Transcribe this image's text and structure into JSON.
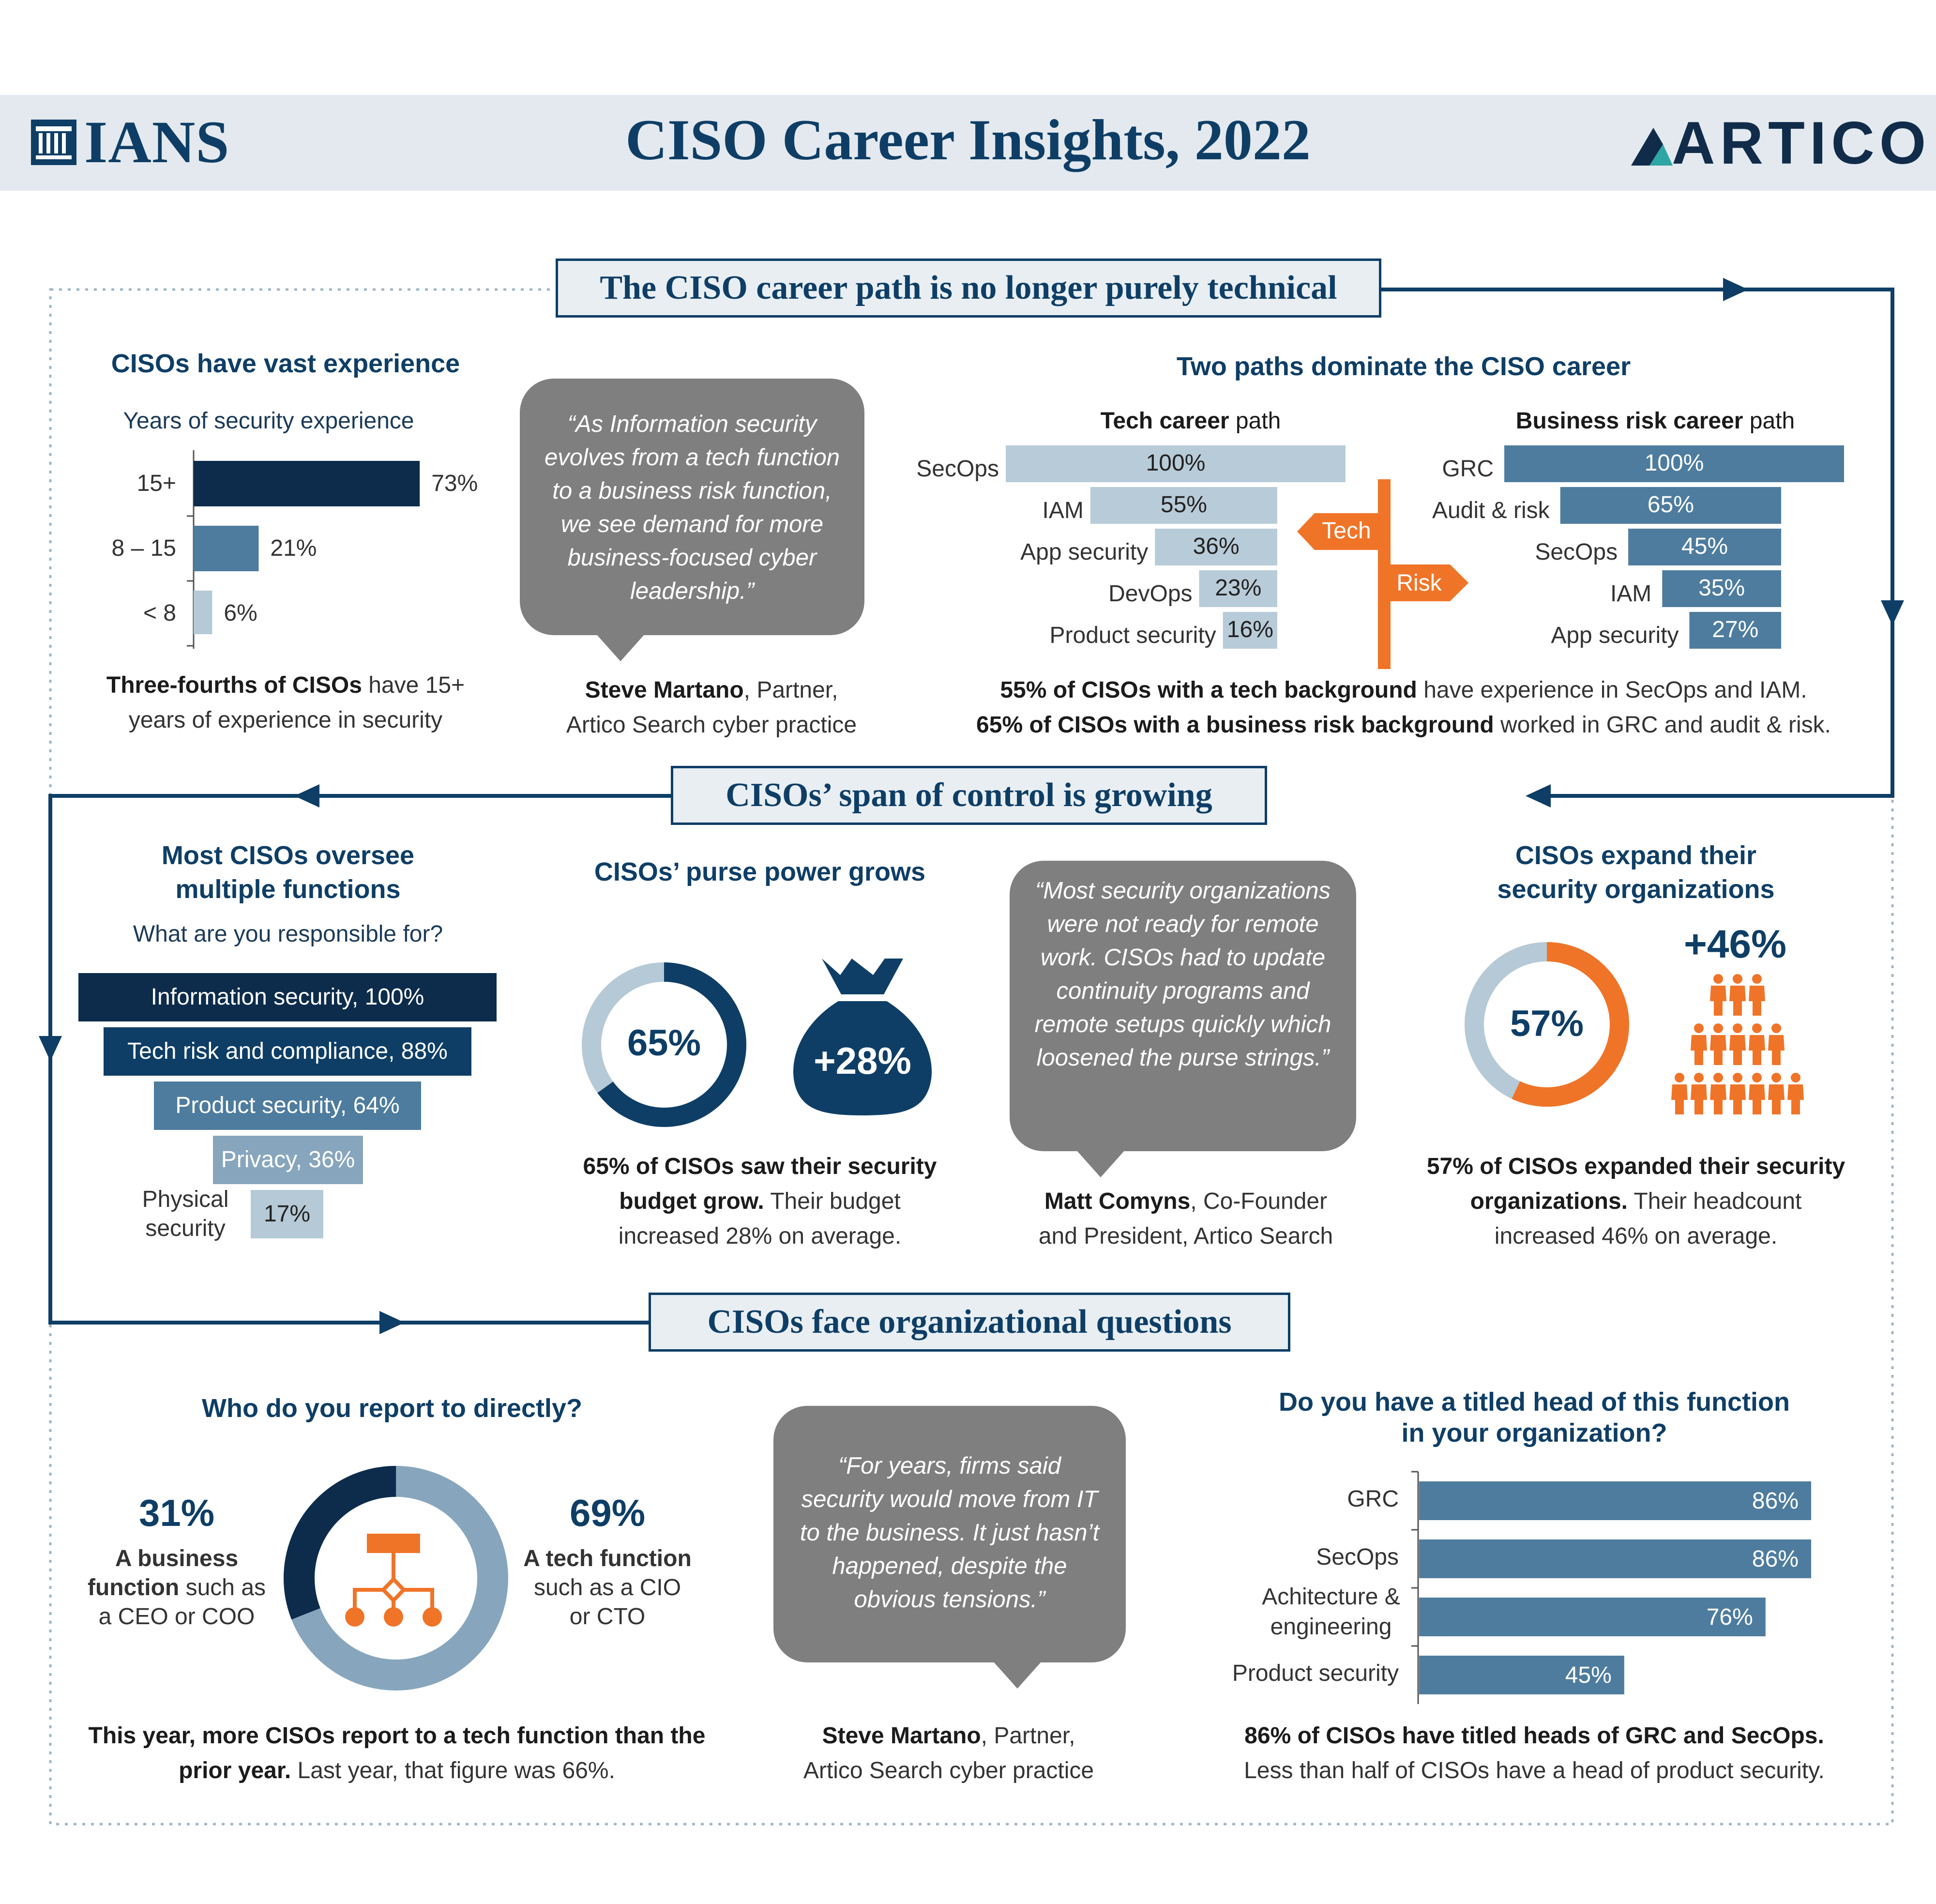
{
  "header": {
    "title": "CISO Career Insights, 2022",
    "left_logo": "IANS",
    "right_logo": "ARTICO",
    "left_logo_icon": "ians-columns-icon",
    "right_logo_icon": "artico-triangle-icon"
  },
  "colors": {
    "navy": "#0e3e66",
    "dark_navy": "#0d2c4c",
    "steel": "#4e7c9e",
    "light_steel": "#b5c9d6",
    "orange": "#f07428",
    "gray_bubble": "#7f7f7f"
  },
  "sections": {
    "s1": "The CISO career path is no longer purely technical",
    "s2": "CISOs’ span of control is growing",
    "s3": "CISOs face organizational questions"
  },
  "experience": {
    "title": "CISOs have vast experience",
    "subtitle": "Years of security experience",
    "caption_bold": "Three-fourths of CISOs",
    "caption_rest_1": " have 15+",
    "caption_rest_2": "years of experience in security"
  },
  "quote1": {
    "text": "“As Information security evolves from a tech function to a business risk function, we see demand for more business-focused cyber leadership.”",
    "author": "Steve Martano",
    "role_1": ", Partner,",
    "role_2": "Artico Search cyber practice"
  },
  "paths": {
    "title": "Two paths dominate the CISO career",
    "tech_title_bold": "Tech career",
    "tech_title_rest": " path",
    "risk_title_bold": "Business risk career",
    "risk_title_rest": " path",
    "sign_tech": "Tech",
    "sign_risk": "Risk",
    "caption1_bold": "55% of CISOs with a tech background",
    "caption1_rest": " have experience in SecOps and IAM.",
    "caption2_bold": "65% of CISOs with a business risk background",
    "caption2_rest": " worked in GRC and audit & risk."
  },
  "oversee": {
    "title_1": "Most CISOs oversee",
    "title_2": "multiple functions",
    "subtitle": "What are you responsible for?",
    "items": [
      {
        "label": "Information security, 100%",
        "value": 100
      },
      {
        "label": "Tech risk and compliance, 88%",
        "value": 88
      },
      {
        "label": "Product security, 64%",
        "value": 64
      },
      {
        "label": "Privacy, 36%",
        "value": 36
      }
    ],
    "last_label_1": "Physical",
    "last_label_2": "security",
    "last_value_text": "17%",
    "last_value": 17
  },
  "purse": {
    "title": "CISOs’ purse power grows",
    "donut_text": "65%",
    "donut_value": 65,
    "bag_text": "+28%",
    "bag_icon": "money-bag-icon",
    "cap_bold_1": "65% of CISOs saw their security",
    "cap_bold_2": "budget grow.",
    "cap_rest_2": " Their budget",
    "cap_3": "increased 28% on average."
  },
  "quote2": {
    "text": "“Most security organizations were not ready for remote work. CISOs had to update continuity programs and remote setups quickly which loosened the purse strings.”",
    "author": "Matt Comyns",
    "role_1": ", Co-Founder",
    "role_2": "and President, Artico Search"
  },
  "expand": {
    "title_1": "CISOs expand their",
    "title_2": "security organizations",
    "donut_text": "57%",
    "donut_value": 57,
    "plus_text": "+46%",
    "people_icon": "people-group-icon",
    "cap_bold_1": "57% of CISOs expanded their security",
    "cap_bold_2": "organizations.",
    "cap_rest_2": " Their headcount",
    "cap_3": "increased 46% on average."
  },
  "report": {
    "title": "Who do you report to directly?",
    "left_pct": "31%",
    "left_bold_1": "A business",
    "left_bold_2": "function",
    "left_rest_2": " such as",
    "left_3": "a CEO or COO",
    "right_pct": "69%",
    "right_bold_1": "A tech function",
    "right_2": "such as a CIO",
    "right_3": "or CTO",
    "org_icon": "org-chart-icon",
    "cap_bold_1": "This year, more CISOs report to a tech function than the",
    "cap_bold_2": "prior year.",
    "cap_rest_2": " Last year, that figure was 66%."
  },
  "quote3": {
    "text": "“For years, firms said security would move from IT to the business. It just hasn’t happened, despite the obvious tensions.”",
    "author": "Steve Martano",
    "role_1": ", Partner,",
    "role_2": "Artico Search cyber practice"
  },
  "titled": {
    "title_1": "Do you have a titled head of this function",
    "title_2": "in your organization?",
    "cap_bold": "86% of CISOs have titled heads of GRC and SecOps.",
    "cap_rest": "Less than half of CISOs have a head of product security."
  },
  "chart_data": [
    {
      "type": "bar",
      "title": "CISOs have vast experience",
      "subtitle": "Years of security experience",
      "categories": [
        "15+",
        "8 – 15",
        "< 8"
      ],
      "values": [
        73,
        21,
        6
      ],
      "value_labels": [
        "73%",
        "21%",
        "6%"
      ],
      "orientation": "horizontal",
      "unit": "%"
    },
    {
      "type": "bar",
      "title": "Tech career path",
      "categories": [
        "SecOps",
        "IAM",
        "App security",
        "DevOps",
        "Product security"
      ],
      "values": [
        100,
        55,
        36,
        23,
        16
      ],
      "value_labels": [
        "100%",
        "55%",
        "36%",
        "23%",
        "16%"
      ],
      "orientation": "horizontal",
      "unit": "%"
    },
    {
      "type": "bar",
      "title": "Business risk career path",
      "categories": [
        "GRC",
        "Audit & risk",
        "SecOps",
        "IAM",
        "App security"
      ],
      "values": [
        100,
        65,
        45,
        35,
        27
      ],
      "value_labels": [
        "100%",
        "65%",
        "45%",
        "35%",
        "27%"
      ],
      "orientation": "horizontal",
      "unit": "%"
    },
    {
      "type": "pie",
      "title": "Who do you report to directly?",
      "categories": [
        "A business function",
        "A tech function"
      ],
      "values": [
        31,
        69
      ],
      "unit": "%"
    },
    {
      "type": "bar",
      "title": "Do you have a titled head of this function in your organization?",
      "categories": [
        "GRC",
        "SecOps",
        "Achitecture & engineering",
        "Product security"
      ],
      "values": [
        86,
        86,
        76,
        45
      ],
      "value_labels": [
        "86%",
        "86%",
        "76%",
        "45%"
      ],
      "orientation": "horizontal",
      "unit": "%"
    }
  ]
}
